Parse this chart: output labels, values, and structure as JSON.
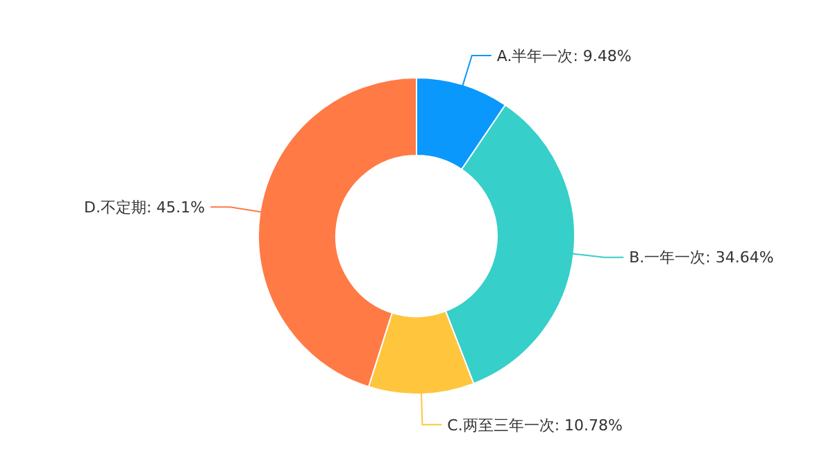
{
  "chart_data": {
    "type": "donut",
    "categories": [
      "A.半年一次",
      "B.一年一次",
      "C.两至三年一次",
      "D.不定期"
    ],
    "values": [
      9.48,
      34.64,
      10.78,
      45.1
    ],
    "value_labels": [
      "9.48%",
      "34.64%",
      "10.78%",
      "45.1%"
    ],
    "colors": [
      "#0a98fc",
      "#36cfc9",
      "#ffc53d",
      "#ff7a45"
    ]
  }
}
